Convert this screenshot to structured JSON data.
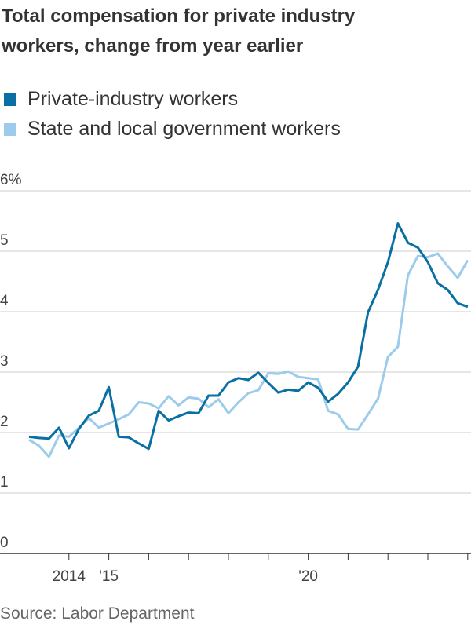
{
  "chart_data": {
    "type": "line",
    "title": "Total compensation for private industry workers, change from year earlier",
    "source": "Source: Labor Department",
    "categories": [
      null,
      null,
      null,
      null,
      "2014",
      null,
      null,
      null,
      "'15",
      null,
      null,
      null,
      null,
      null,
      null,
      null,
      null,
      null,
      null,
      null,
      null,
      null,
      null,
      null,
      null,
      null,
      null,
      null,
      "'20",
      null,
      null,
      null,
      null,
      null,
      null,
      null,
      null,
      null,
      null,
      null,
      null,
      null,
      null,
      null,
      null
    ],
    "series": [
      {
        "name": "Private-industry workers",
        "color": "#0a6fa3",
        "values": [
          1.93,
          1.91,
          1.9,
          2.08,
          1.74,
          2.06,
          2.28,
          2.36,
          2.75,
          1.93,
          1.92,
          1.82,
          1.73,
          2.36,
          2.2,
          2.27,
          2.33,
          2.32,
          2.61,
          2.61,
          2.83,
          2.9,
          2.87,
          2.99,
          2.82,
          2.66,
          2.71,
          2.69,
          2.83,
          2.74,
          2.51,
          2.64,
          2.83,
          3.09,
          3.99,
          4.36,
          4.82,
          5.46,
          5.14,
          5.06,
          4.82,
          4.47,
          4.36,
          4.14,
          4.08
        ]
      },
      {
        "name": "State and local government workers",
        "color": "#9ccbec",
        "values": [
          1.88,
          1.78,
          1.6,
          1.95,
          1.93,
          2.08,
          2.24,
          2.08,
          2.15,
          2.22,
          2.3,
          2.5,
          2.48,
          2.4,
          2.6,
          2.45,
          2.58,
          2.56,
          2.42,
          2.55,
          2.32,
          2.5,
          2.65,
          2.7,
          2.98,
          2.97,
          3.01,
          2.92,
          2.9,
          2.88,
          2.36,
          2.3,
          2.06,
          2.05,
          2.3,
          2.56,
          3.25,
          3.42,
          4.6,
          4.92,
          4.9,
          4.96,
          4.75,
          4.56,
          4.85
        ]
      }
    ],
    "ylim": [
      0,
      6
    ],
    "yticks": [
      0,
      1,
      2,
      3,
      4,
      5,
      {
        "value": 6,
        "label": "6%"
      }
    ],
    "grid": true
  }
}
